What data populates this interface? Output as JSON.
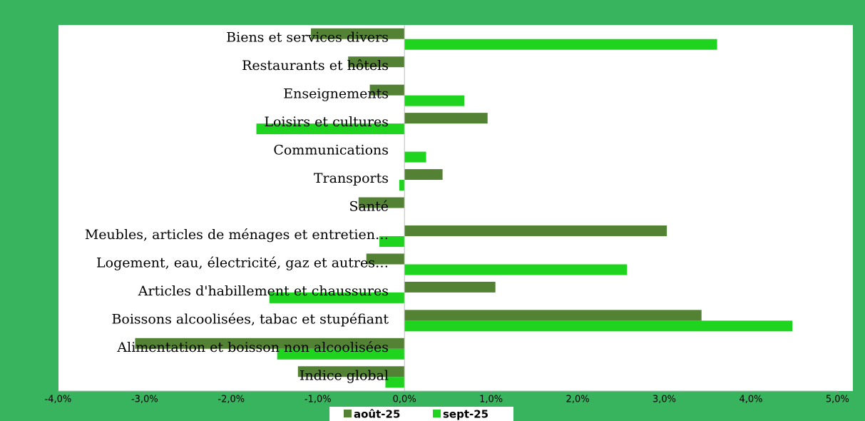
{
  "chart_data": {
    "type": "hbar",
    "categories": [
      "Biens et services divers",
      "Restaurants et hôtels",
      "Enseignements",
      "Loisirs et cultures",
      "Communications",
      "Transports",
      "Santé",
      "Meubles, articles de ménages et entretien…",
      "Logement, eau, électricité, gaz et autres…",
      "Articles d'habillement et chaussures",
      "Boissons alcoolisées, tabac et stupéfiant",
      "Alimentation et boisson non alcoolisées",
      "Indice global"
    ],
    "series": [
      {
        "name": "août-25",
        "color": "#548235",
        "values": [
          -1.08,
          -0.65,
          -0.4,
          0.96,
          0,
          0.44,
          -0.53,
          3.03,
          -0.44,
          1.05,
          3.43,
          -3.11,
          -1.23
        ]
      },
      {
        "name": "sept-25",
        "color": "#1fd41f",
        "values": [
          3.61,
          0,
          0.69,
          -1.71,
          0.25,
          -0.06,
          0,
          -0.29,
          2.57,
          -1.56,
          4.48,
          -1.47,
          -0.22
        ]
      }
    ],
    "xlim": [
      -4,
      5
    ],
    "xticks": [
      {
        "value": -4,
        "label": "-4,0%"
      },
      {
        "value": -3,
        "label": "-3,0%"
      },
      {
        "value": -2,
        "label": "-2,0%"
      },
      {
        "value": -1,
        "label": "-1,0%"
      },
      {
        "value": 0,
        "label": "0,0%"
      },
      {
        "value": 1,
        "label": "1,0%"
      },
      {
        "value": 2,
        "label": "2,0%"
      },
      {
        "value": 3,
        "label": "3,0%"
      },
      {
        "value": 4,
        "label": "4,0%"
      },
      {
        "value": 5,
        "label": "5,0%"
      }
    ],
    "legend": "bottom"
  }
}
